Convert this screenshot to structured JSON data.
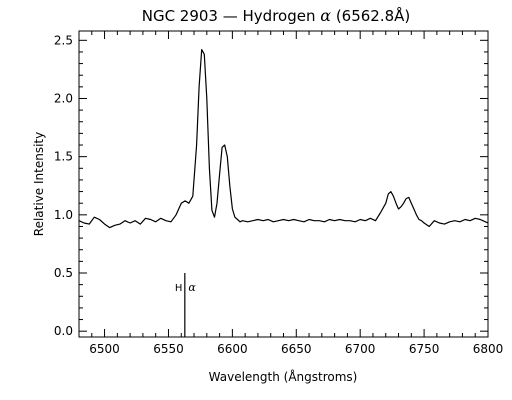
{
  "chart_data": {
    "type": "line",
    "title": "NGC 2903 — Hydrogen α (6562.8Å)",
    "xlabel": "Wavelength (Ångstroms)",
    "ylabel": "Relative Intensity",
    "xlim": [
      6480,
      6800
    ],
    "ylim": [
      -0.05,
      2.58
    ],
    "x_ticks": [
      6500,
      6550,
      6600,
      6650,
      6700,
      6750,
      6800
    ],
    "y_ticks": [
      0.0,
      0.5,
      1.0,
      1.5,
      2.0,
      2.5
    ],
    "y_tick_labels": [
      "0.0",
      "0.5",
      "1.0",
      "1.5",
      "2.0",
      "2.5"
    ],
    "grid": false,
    "series": [
      {
        "x": [
          6480,
          6484,
          6488,
          6492,
          6496,
          6500,
          6504,
          6508,
          6512,
          6516,
          6520,
          6524,
          6528,
          6532,
          6536,
          6540,
          6544,
          6548,
          6552,
          6556,
          6560,
          6563,
          6566,
          6569,
          6572,
          6574,
          6576,
          6578,
          6580,
          6582,
          6584,
          6586,
          6588,
          6590,
          6592,
          6594,
          6596,
          6598,
          6600,
          6602,
          6604,
          6606,
          6608,
          6612,
          6616,
          6620,
          6624,
          6628,
          6632,
          6636,
          6640,
          6644,
          6648,
          6652,
          6656,
          6660,
          6664,
          6668,
          6672,
          6676,
          6680,
          6684,
          6688,
          6692,
          6696,
          6700,
          6704,
          6708,
          6712,
          6716,
          6720,
          6722,
          6724,
          6726,
          6728,
          6730,
          6732,
          6734,
          6736,
          6738,
          6740,
          6742,
          6744,
          6746,
          6748,
          6750,
          6754,
          6758,
          6762,
          6766,
          6770,
          6774,
          6778,
          6782,
          6786,
          6790,
          6794,
          6798,
          6800
        ],
        "y": [
          0.95,
          0.93,
          0.92,
          0.98,
          0.96,
          0.92,
          0.89,
          0.91,
          0.92,
          0.95,
          0.93,
          0.95,
          0.92,
          0.97,
          0.96,
          0.94,
          0.97,
          0.95,
          0.94,
          1.0,
          1.1,
          1.12,
          1.1,
          1.16,
          1.6,
          2.1,
          2.42,
          2.38,
          2.0,
          1.4,
          1.04,
          0.98,
          1.1,
          1.35,
          1.58,
          1.6,
          1.5,
          1.25,
          1.05,
          0.98,
          0.96,
          0.94,
          0.95,
          0.94,
          0.95,
          0.96,
          0.95,
          0.96,
          0.94,
          0.95,
          0.96,
          0.95,
          0.96,
          0.95,
          0.94,
          0.96,
          0.95,
          0.95,
          0.94,
          0.96,
          0.95,
          0.96,
          0.95,
          0.95,
          0.94,
          0.96,
          0.95,
          0.97,
          0.95,
          1.02,
          1.1,
          1.18,
          1.2,
          1.16,
          1.1,
          1.05,
          1.07,
          1.1,
          1.14,
          1.15,
          1.1,
          1.05,
          1.0,
          0.96,
          0.95,
          0.93,
          0.9,
          0.95,
          0.93,
          0.92,
          0.94,
          0.95,
          0.94,
          0.96,
          0.95,
          0.97,
          0.96,
          0.94,
          0.93
        ]
      }
    ],
    "annotation": {
      "label_text": "H",
      "label_symbol": "α",
      "line_x": 6562.8,
      "line_y_range": [
        -0.05,
        0.5
      ],
      "label_y": 0.38
    }
  }
}
